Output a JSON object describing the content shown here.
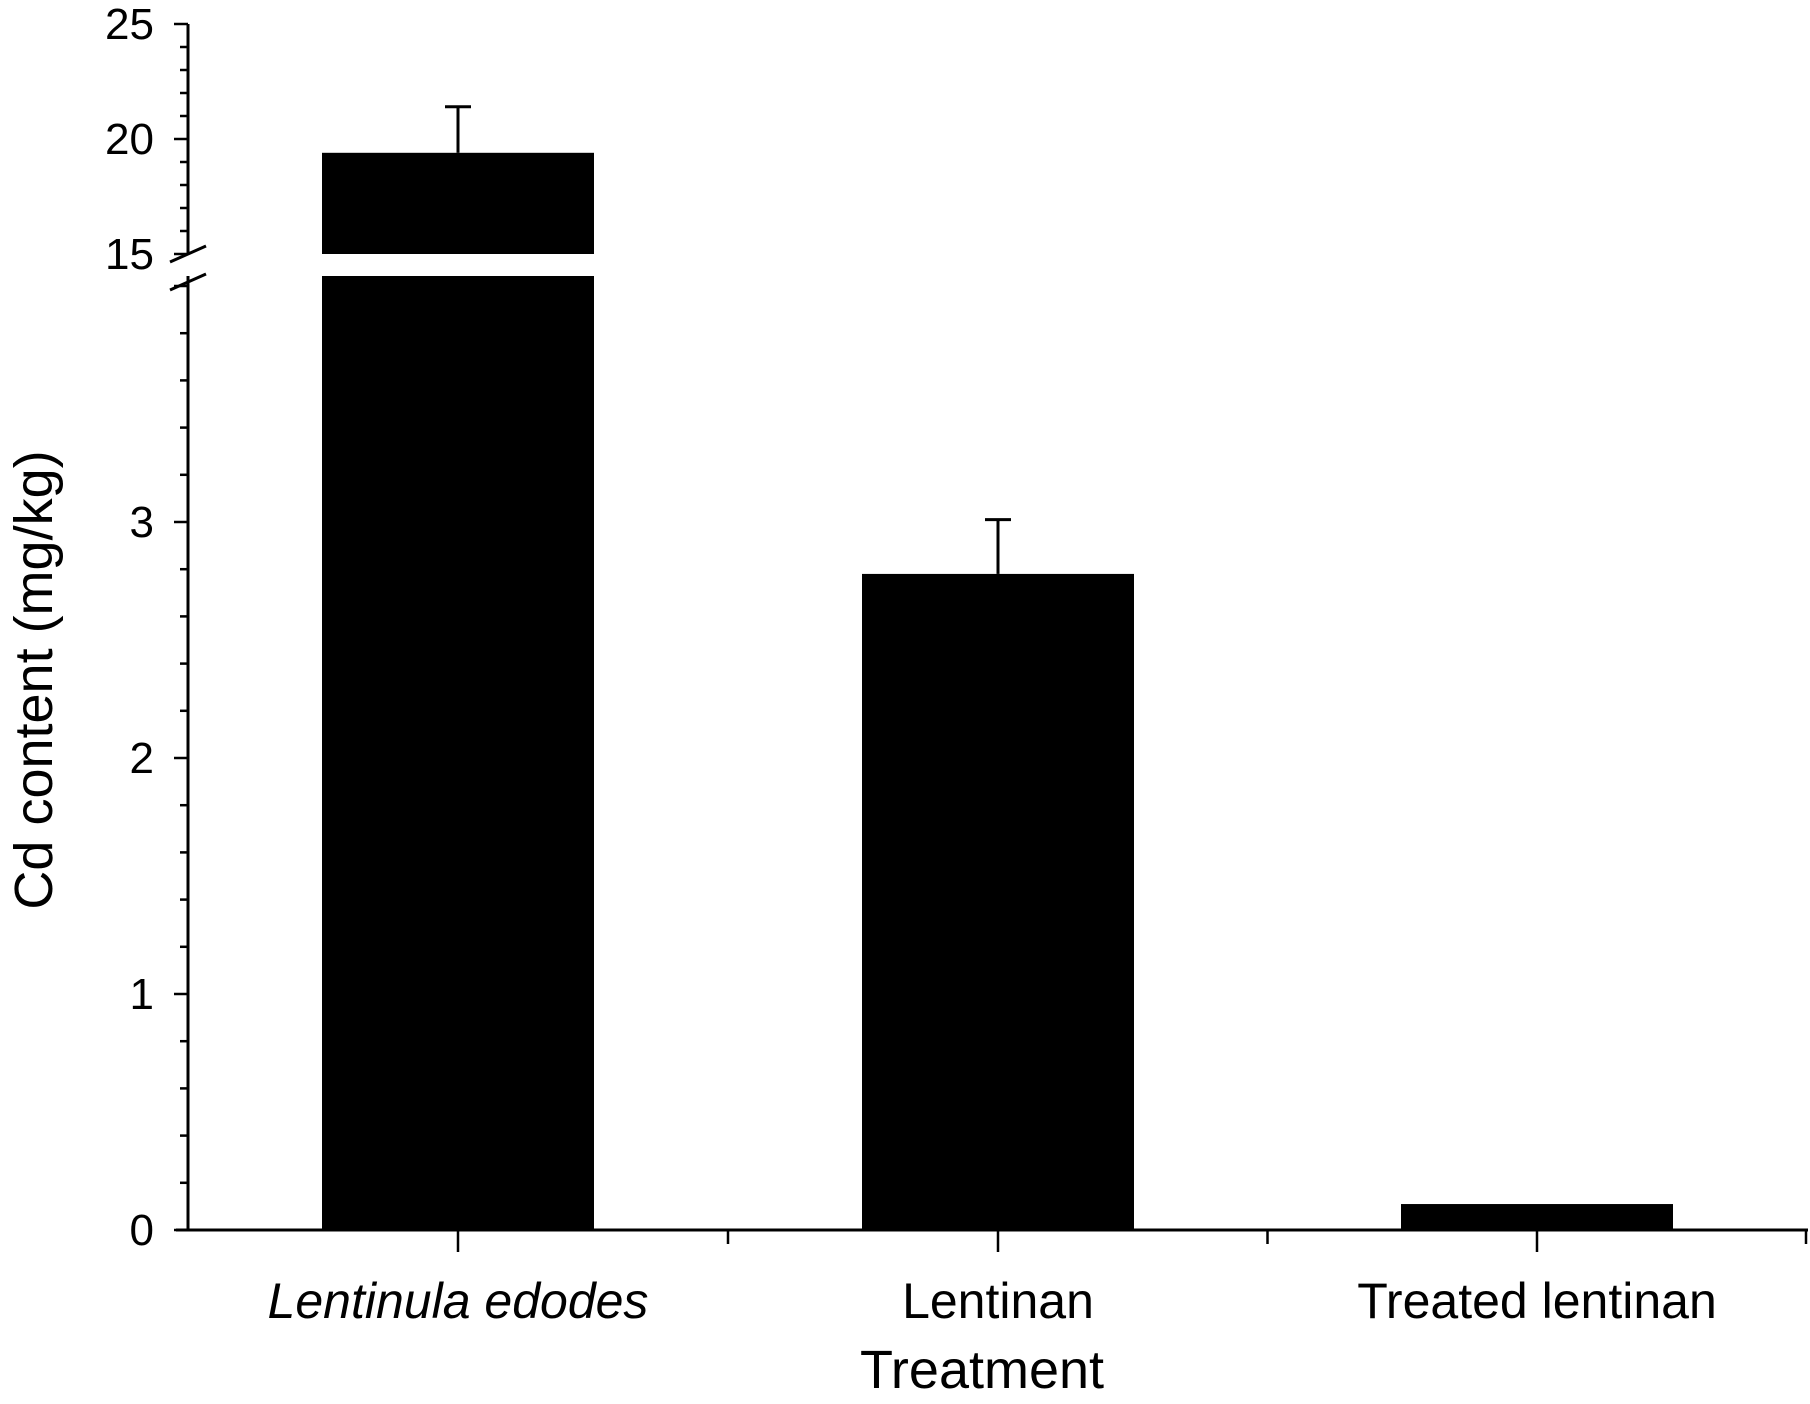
{
  "chart_data": {
    "type": "bar",
    "xlabel": "Treatment",
    "ylabel": "Cd content (mg/kg)",
    "categories": [
      "Lentinula edodes",
      "Lentinan",
      "Treated lentinan"
    ],
    "categories_italic": [
      true,
      false,
      false
    ],
    "values": [
      19.4,
      2.78,
      0.11
    ],
    "errors": [
      2.0,
      0.23,
      0.0
    ],
    "y_axis_break": {
      "lower_segment": [
        0,
        4
      ],
      "upper_segment": [
        15,
        25
      ]
    },
    "yticks_lower": [
      "0",
      "1",
      "2",
      "3"
    ],
    "yticks_upper": [
      "15",
      "20",
      "25"
    ],
    "grid": false,
    "legend": "none",
    "colors": {
      "bar": "#000000",
      "axis": "#000000",
      "background": "#ffffff"
    }
  }
}
